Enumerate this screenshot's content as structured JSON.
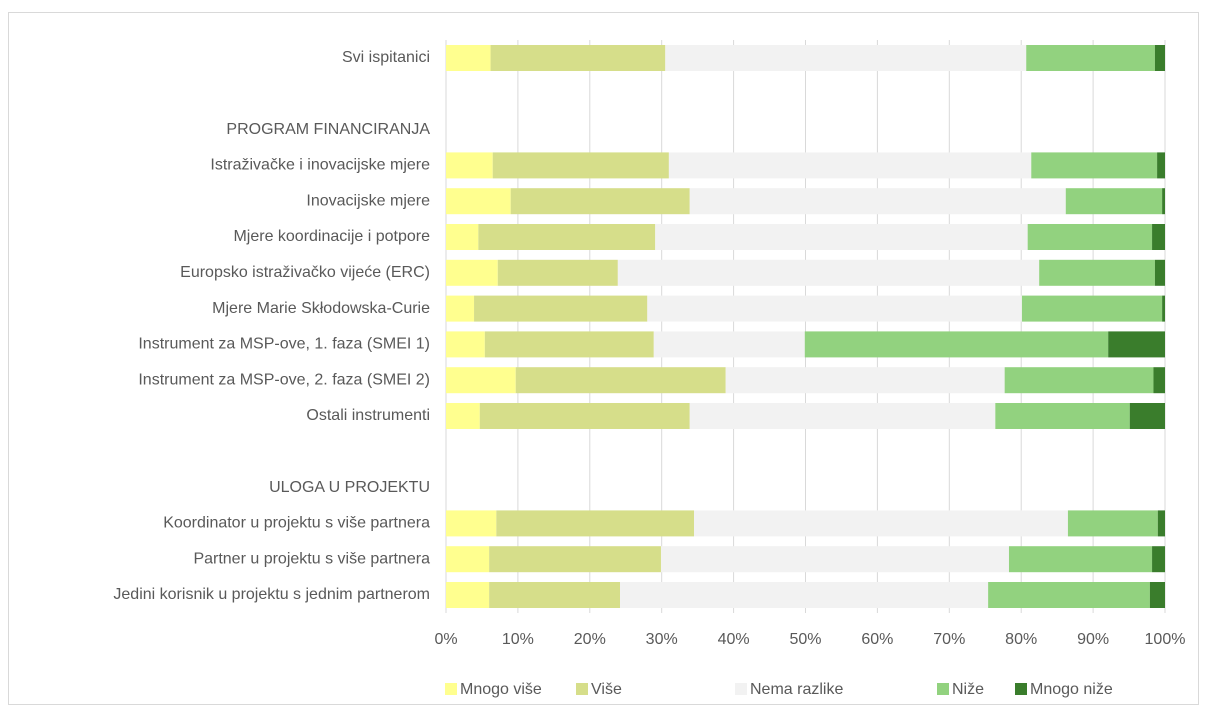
{
  "chart_data": {
    "type": "stacked-barh",
    "categories": [
      "Svi ispitanici",
      null,
      "PROGRAM FINANCIRANJA",
      "Istraživačke i inovacijske mjere",
      "Inovacijske mjere",
      "Mjere koordinacije i potpore",
      "Europsko istraživačko vijeće (ERC)",
      "Mjere Marie Skłodowska-Curie",
      "Instrument za MSP-ove, 1. faza (SMEI 1)",
      "Instrument za MSP-ove, 2. faza (SMEI 2)",
      "Ostali instrumenti",
      null,
      "ULOGA U PROJEKTU",
      "Koordinator u projektu s više partnera",
      "Partner u projektu s više partnera",
      "Jedini korisnik u projektu s jednim partnerom"
    ],
    "series": [
      {
        "name": "Mnogo više",
        "color": "#ffff8f",
        "values": [
          6.2,
          null,
          null,
          6.5,
          9.0,
          4.5,
          7.2,
          3.9,
          5.4,
          9.7,
          4.7,
          null,
          null,
          7.0,
          6.0,
          6.0
        ]
      },
      {
        "name": "Više",
        "color": "#d6de8a",
        "values": [
          24.3,
          null,
          null,
          24.5,
          24.9,
          24.6,
          16.7,
          24.1,
          23.5,
          29.2,
          29.2,
          null,
          null,
          27.5,
          23.9,
          18.2
        ]
      },
      {
        "name": "Nema razlike",
        "color": "#f2f2f2",
        "values": [
          50.2,
          null,
          null,
          50.4,
          52.3,
          51.8,
          58.6,
          52.1,
          21.0,
          38.8,
          42.5,
          null,
          null,
          52.0,
          48.4,
          51.2
        ]
      },
      {
        "name": "Niže",
        "color": "#92d27f",
        "values": [
          17.9,
          null,
          null,
          17.5,
          13.4,
          17.3,
          16.1,
          19.5,
          42.2,
          20.7,
          18.7,
          null,
          null,
          12.5,
          19.9,
          22.5
        ]
      },
      {
        "name": "Mnogo niže",
        "color": "#3a7d2c",
        "values": [
          1.4,
          null,
          null,
          1.1,
          0.4,
          1.8,
          1.4,
          0.4,
          7.9,
          1.6,
          4.9,
          null,
          null,
          1.0,
          1.8,
          2.1
        ]
      }
    ],
    "xlim": [
      0,
      100
    ],
    "xticks": [
      {
        "value": 0,
        "label": "0%"
      },
      {
        "value": 10,
        "label": "10%"
      },
      {
        "value": 20,
        "label": "20%"
      },
      {
        "value": 30,
        "label": "30%"
      },
      {
        "value": 40,
        "label": "40%"
      },
      {
        "value": 50,
        "label": "50%"
      },
      {
        "value": 60,
        "label": "60%"
      },
      {
        "value": 70,
        "label": "70%"
      },
      {
        "value": 80,
        "label": "80%"
      },
      {
        "value": 90,
        "label": "90%"
      },
      {
        "value": 100,
        "label": "100%"
      }
    ],
    "grid": true,
    "legend": "bottom"
  }
}
